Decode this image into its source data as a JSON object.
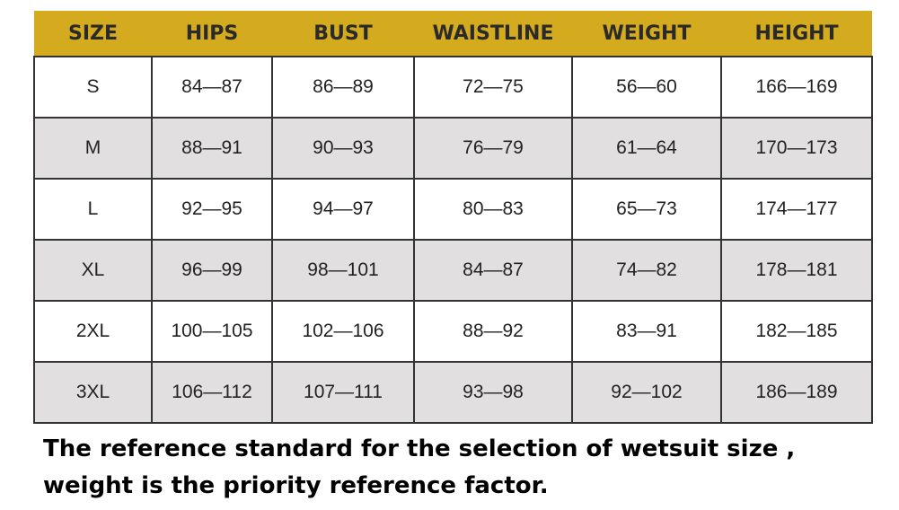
{
  "table": {
    "header": [
      "SIZE",
      "HIPS",
      "BUST",
      "WAISTLINE",
      "WEIGHT",
      "HEIGHT"
    ],
    "rows": [
      [
        "S",
        "84—87",
        "86—89",
        "72—75",
        "56—60",
        "166—169"
      ],
      [
        "M",
        "88—91",
        "90—93",
        "76—79",
        "61—64",
        "170—173"
      ],
      [
        "L",
        "92—95",
        "94—97",
        "80—83",
        "65—73",
        "174—177"
      ],
      [
        "XL",
        "96—99",
        "98—101",
        "84—87",
        "74—82",
        "178—181"
      ],
      [
        "2XL",
        "100—105",
        "102—106",
        "88—92",
        "83—91",
        "182—185"
      ],
      [
        "3XL",
        "106—112",
        "107—111",
        "93—98",
        "92—102",
        "186—189"
      ]
    ]
  },
  "note": [
    "The reference standard for the selection of wetsuit size ,",
    "weight is the priority reference factor."
  ]
}
